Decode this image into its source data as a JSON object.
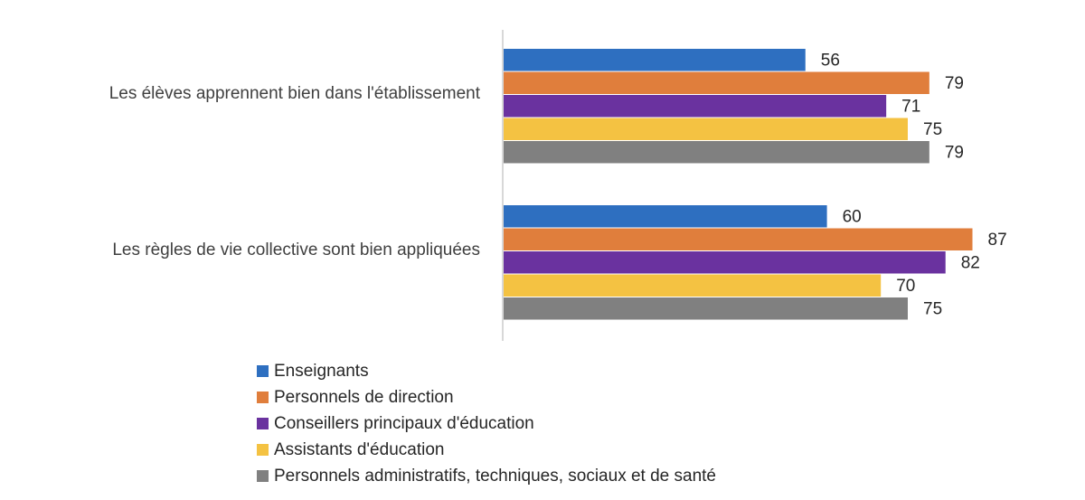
{
  "chart_data": {
    "type": "bar",
    "orientation": "horizontal",
    "categories": [
      "Les élèves apprennent bien dans l'établissement",
      "Les règles de vie collective sont bien appliquées"
    ],
    "series": [
      {
        "name": "Enseignants",
        "color": "#2E6FC0",
        "values": [
          56,
          60
        ]
      },
      {
        "name": "Personnels de direction",
        "color": "#E07E3C",
        "values": [
          79,
          87
        ]
      },
      {
        "name": "Conseillers principaux d'éducation",
        "color": "#6A329F",
        "values": [
          71,
          82
        ]
      },
      {
        "name": "Assistants d'éducation",
        "color": "#F4C242",
        "values": [
          75,
          70
        ]
      },
      {
        "name": "Personnels administratifs, techniques, sociaux et de santé",
        "color": "#808080",
        "values": [
          79,
          75
        ]
      }
    ],
    "xlim": [
      0,
      100
    ],
    "grid": false,
    "legend_position": "bottom"
  }
}
